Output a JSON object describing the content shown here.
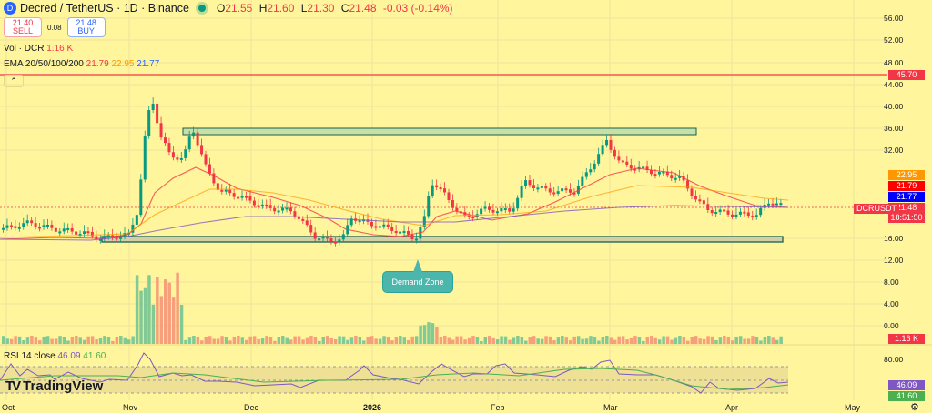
{
  "header": {
    "symbol_icon": "decred-logo-icon",
    "title": "Decred / TetherUS · 1D · Binance",
    "ohlc": [
      {
        "k": "O",
        "v": "21.55"
      },
      {
        "k": "H",
        "v": "21.60"
      },
      {
        "k": "L",
        "v": "21.30"
      },
      {
        "k": "C",
        "v": "21.48"
      }
    ],
    "change": "-0.03 (-0.14%)"
  },
  "trade": {
    "sell_price": "21.40",
    "sell_label": "SELL",
    "spread": "0.08",
    "buy_price": "21.48",
    "buy_label": "BUY"
  },
  "indicators": {
    "vol_label": "Vol · DCR",
    "vol_value": "1.16 K",
    "ema_label": "EMA 20/50/100/200",
    "ema20": "21.79",
    "ema50": "22.95",
    "ema100": "21.77",
    "rsi_label": "RSI 14 close",
    "rsi_value": "46.09",
    "rsi_ma": "41.60"
  },
  "price_axis": {
    "ticks": [
      "56.00",
      "52.00",
      "48.00",
      "44.00",
      "40.00",
      "36.00",
      "32.00",
      "16.00",
      "12.00",
      "8.00",
      "4.00",
      "0.00"
    ],
    "horizontal_line": "45.70",
    "tags": {
      "ema50": "22.95",
      "ema20": "21.79",
      "ema100": "21.77",
      "last": "21.48",
      "countdown": "18:51:50",
      "symbol": "DCRUSDT",
      "volume": "1.16 K",
      "rsi": "46.09",
      "rsi_ma": "41.60"
    },
    "rsi_ticks": [
      "80.00"
    ]
  },
  "time_axis": [
    "Oct",
    "Nov",
    "Dec",
    "2026",
    "Feb",
    "Mar",
    "Apr",
    "May"
  ],
  "annotation": {
    "demand_zone": "Demand Zone"
  },
  "branding": {
    "logo": "TradingView"
  },
  "colors": {
    "background": "#fff59d",
    "up": "#089981",
    "down": "#f23645",
    "ema20": "#f23645",
    "ema50": "#ff9800",
    "ema100": "#2962ff",
    "resistance_line": "#f23645",
    "zone_fill": "#c5e1a5",
    "zone_border": "#1b5e50"
  }
}
